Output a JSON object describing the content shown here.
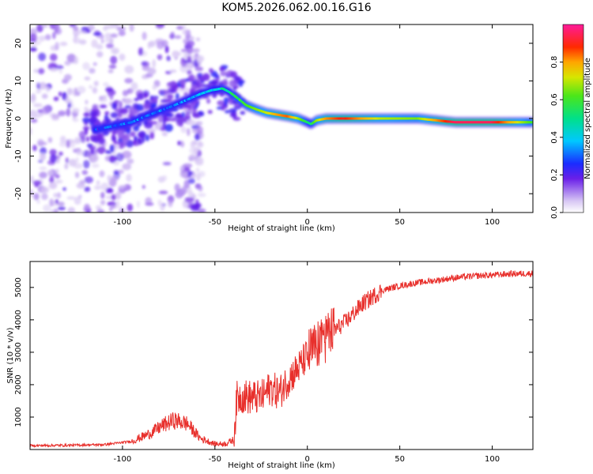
{
  "title": "KOM5.2026.062.00.16.G16",
  "chart_data": [
    {
      "type": "heatmap",
      "title": "KOM5.2026.062.00.16.G16",
      "xlabel": "Height of straight line (km)",
      "ylabel": "Frequency (Hz)",
      "xlim": [
        -150,
        122
      ],
      "ylim": [
        -25,
        25
      ],
      "xticks": [
        -100,
        -50,
        0,
        50,
        100
      ],
      "xtick_labels": [
        "-100",
        "-50",
        "0",
        "50",
        "100"
      ],
      "yticks": [
        -20,
        -10,
        0,
        10,
        20
      ],
      "ytick_labels": [
        "-20",
        "-10",
        "0",
        "10",
        "20"
      ],
      "ridge": {
        "x": [
          -115,
          -105,
          -95,
          -88,
          -80,
          -72,
          -65,
          -58,
          -52,
          -46,
          -42,
          -38,
          -33,
          -28,
          -22,
          -16,
          -10,
          -5,
          0,
          2,
          5,
          10,
          20,
          40,
          60,
          80,
          100,
          122
        ],
        "freq": [
          -3,
          -2,
          -1,
          0.5,
          2,
          3.5,
          5,
          6.5,
          7.5,
          8,
          7,
          5.5,
          3.5,
          2.5,
          1.5,
          1,
          0.5,
          0,
          -1,
          -1.5,
          -0.5,
          0,
          0,
          0,
          0,
          -1,
          -1,
          -1
        ],
        "amplitude": [
          0.25,
          0.3,
          0.3,
          0.3,
          0.3,
          0.3,
          0.32,
          0.35,
          0.4,
          0.45,
          0.5,
          0.55,
          0.6,
          0.65,
          0.7,
          0.8,
          0.85,
          0.7,
          0.55,
          0.5,
          0.65,
          0.8,
          0.9,
          0.7,
          0.65,
          0.95,
          0.95,
          0.6
        ]
      },
      "colorbar": {
        "label": "Normalized spectral amplitude",
        "range": [
          0,
          1
        ],
        "ticks": [
          0.0,
          0.2,
          0.4,
          0.6,
          0.8
        ],
        "tick_labels": [
          "0.0",
          "0.2",
          "0.4",
          "0.6",
          "0.8"
        ]
      }
    },
    {
      "type": "line",
      "xlabel": "Height of straight line (km)",
      "ylabel": "SNR (10 * v/v)",
      "xlim": [
        -150,
        122
      ],
      "ylim": [
        0,
        5800
      ],
      "xticks": [
        -100,
        -50,
        0,
        50,
        100
      ],
      "xtick_labels": [
        "-100",
        "-50",
        "0",
        "50",
        "100"
      ],
      "yticks": [
        1000,
        2000,
        3000,
        4000,
        5000
      ],
      "ytick_labels": [
        "1000",
        "2000",
        "3000",
        "4000",
        "5000"
      ],
      "color": "#e8302c",
      "x": [
        -150,
        -130,
        -110,
        -95,
        -85,
        -78,
        -72,
        -65,
        -58,
        -50,
        -44,
        -40,
        -38,
        -35,
        -30,
        -25,
        -20,
        -15,
        -10,
        -5,
        0,
        5,
        8,
        10,
        15,
        20,
        30,
        40,
        50,
        60,
        70,
        80,
        90,
        100,
        110,
        122
      ],
      "y": [
        120,
        130,
        150,
        250,
        500,
        750,
        900,
        800,
        350,
        170,
        180,
        300,
        1600,
        1650,
        1600,
        1600,
        1900,
        1750,
        2200,
        2500,
        2900,
        3200,
        3400,
        3500,
        3700,
        3900,
        4500,
        4900,
        5050,
        5150,
        5220,
        5300,
        5350,
        5380,
        5420,
        5430
      ]
    }
  ]
}
